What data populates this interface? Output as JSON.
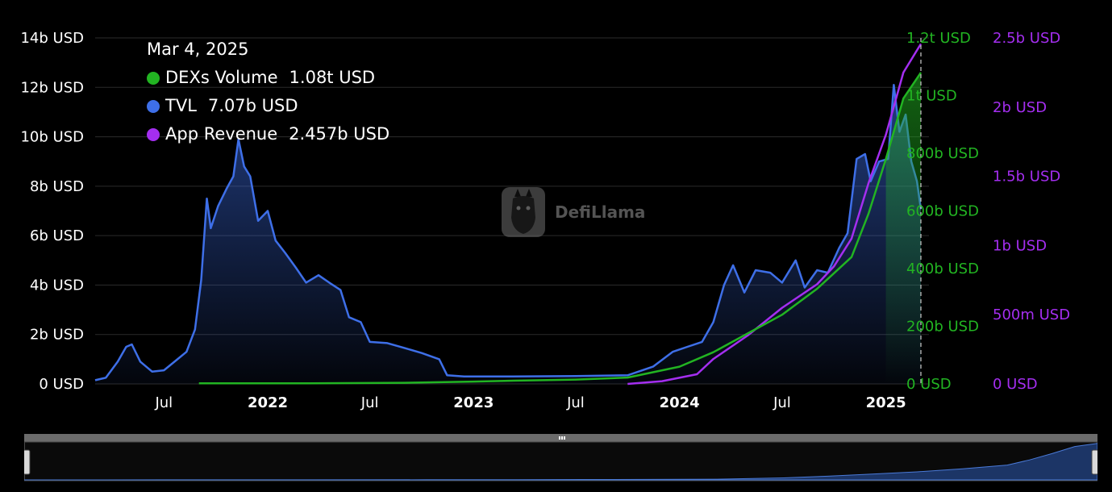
{
  "tooltip": {
    "date": "Mar 4, 2025",
    "rows": [
      {
        "label": "DEXs Volume",
        "value": "1.08t USD",
        "color": "#22b422"
      },
      {
        "label": "TVL",
        "value": "7.07b USD",
        "color": "#3e6fe8"
      },
      {
        "label": "App Revenue",
        "value": "2.457b USD",
        "color": "#a42ef0"
      }
    ]
  },
  "watermark": {
    "text": "DefiLlama"
  },
  "colors": {
    "tvl": "#3e6fe8",
    "dex": "#22b422",
    "revenue": "#a42ef0",
    "axis_left": "#ffffff",
    "axis_dex": "#22b422",
    "axis_revenue": "#a42ef0"
  },
  "chart_data": {
    "type": "line",
    "x_ticks": [
      {
        "label": "Jul",
        "date": "2021-07-01",
        "bold": false
      },
      {
        "label": "2022",
        "date": "2022-01-01",
        "bold": true
      },
      {
        "label": "Jul",
        "date": "2022-07-01",
        "bold": false
      },
      {
        "label": "2023",
        "date": "2023-01-01",
        "bold": true
      },
      {
        "label": "Jul",
        "date": "2023-07-01",
        "bold": false
      },
      {
        "label": "2024",
        "date": "2024-01-01",
        "bold": true
      },
      {
        "label": "Jul",
        "date": "2024-07-01",
        "bold": false
      },
      {
        "label": "2025",
        "date": "2025-01-01",
        "bold": true
      }
    ],
    "x_range": [
      "2021-03-01",
      "2025-03-04"
    ],
    "crosshair_date": "2025-03-04",
    "axes": {
      "tvl": {
        "ticks": [
          "0 USD",
          "2b USD",
          "4b USD",
          "6b USD",
          "8b USD",
          "10b USD",
          "12b USD",
          "14b USD"
        ],
        "tick_values": [
          0,
          2,
          4,
          6,
          8,
          10,
          12,
          14
        ],
        "unit": "b USD",
        "range": [
          0,
          14
        ]
      },
      "dex": {
        "ticks": [
          "0 USD",
          "200b USD",
          "400b USD",
          "600b USD",
          "800b USD",
          "1t USD",
          "1.2t USD"
        ],
        "tick_values": [
          0,
          200,
          400,
          600,
          800,
          1000,
          1200
        ],
        "unit": "b USD",
        "range": [
          0,
          1200
        ]
      },
      "revenue": {
        "ticks": [
          "0 USD",
          "500m USD",
          "1b USD",
          "1.5b USD",
          "2b USD",
          "2.5b USD"
        ],
        "tick_values": [
          0,
          0.5,
          1,
          1.5,
          2,
          2.5
        ],
        "unit": "b USD",
        "range": [
          0,
          2.5
        ]
      }
    },
    "series": [
      {
        "name": "TVL",
        "axis": "tvl",
        "area": true,
        "points": [
          [
            "2021-03-01",
            0.15
          ],
          [
            "2021-03-20",
            0.25
          ],
          [
            "2021-04-10",
            0.9
          ],
          [
            "2021-04-25",
            1.5
          ],
          [
            "2021-05-05",
            1.6
          ],
          [
            "2021-05-20",
            0.9
          ],
          [
            "2021-06-10",
            0.5
          ],
          [
            "2021-07-01",
            0.55
          ],
          [
            "2021-07-25",
            1.0
          ],
          [
            "2021-08-10",
            1.3
          ],
          [
            "2021-08-25",
            2.2
          ],
          [
            "2021-09-05",
            4.2
          ],
          [
            "2021-09-15",
            7.5
          ],
          [
            "2021-09-22",
            6.3
          ],
          [
            "2021-10-05",
            7.2
          ],
          [
            "2021-10-20",
            7.9
          ],
          [
            "2021-11-01",
            8.4
          ],
          [
            "2021-11-10",
            9.9
          ],
          [
            "2021-11-20",
            8.8
          ],
          [
            "2021-12-01",
            8.4
          ],
          [
            "2021-12-15",
            6.6
          ],
          [
            "2022-01-01",
            7.0
          ],
          [
            "2022-01-15",
            5.8
          ],
          [
            "2022-02-01",
            5.3
          ],
          [
            "2022-02-20",
            4.7
          ],
          [
            "2022-03-10",
            4.1
          ],
          [
            "2022-04-01",
            4.4
          ],
          [
            "2022-04-20",
            4.1
          ],
          [
            "2022-05-10",
            3.8
          ],
          [
            "2022-05-25",
            2.7
          ],
          [
            "2022-06-15",
            2.5
          ],
          [
            "2022-07-01",
            1.7
          ],
          [
            "2022-08-01",
            1.65
          ],
          [
            "2022-09-01",
            1.45
          ],
          [
            "2022-10-01",
            1.25
          ],
          [
            "2022-11-01",
            1.0
          ],
          [
            "2022-11-15",
            0.35
          ],
          [
            "2022-12-15",
            0.3
          ],
          [
            "2023-03-01",
            0.3
          ],
          [
            "2023-07-01",
            0.32
          ],
          [
            "2023-10-01",
            0.35
          ],
          [
            "2023-11-15",
            0.7
          ],
          [
            "2023-12-20",
            1.3
          ],
          [
            "2024-01-15",
            1.5
          ],
          [
            "2024-02-10",
            1.7
          ],
          [
            "2024-03-01",
            2.5
          ],
          [
            "2024-03-20",
            4.0
          ],
          [
            "2024-04-05",
            4.8
          ],
          [
            "2024-04-25",
            3.7
          ],
          [
            "2024-05-15",
            4.6
          ],
          [
            "2024-06-10",
            4.5
          ],
          [
            "2024-07-01",
            4.1
          ],
          [
            "2024-07-25",
            5.0
          ],
          [
            "2024-08-10",
            3.9
          ],
          [
            "2024-09-01",
            4.6
          ],
          [
            "2024-09-20",
            4.5
          ],
          [
            "2024-10-10",
            5.5
          ],
          [
            "2024-10-25",
            6.1
          ],
          [
            "2024-11-10",
            9.1
          ],
          [
            "2024-11-25",
            9.3
          ],
          [
            "2024-12-05",
            8.2
          ],
          [
            "2024-12-20",
            9.0
          ],
          [
            "2025-01-05",
            9.1
          ],
          [
            "2025-01-15",
            12.1
          ],
          [
            "2025-01-25",
            10.2
          ],
          [
            "2025-02-05",
            10.9
          ],
          [
            "2025-02-15",
            9.0
          ],
          [
            "2025-02-25",
            8.2
          ],
          [
            "2025-03-04",
            7.07
          ]
        ]
      },
      {
        "name": "DEXs Volume",
        "axis": "dex",
        "area": false,
        "points": [
          [
            "2021-09-01",
            2
          ],
          [
            "2022-03-01",
            2
          ],
          [
            "2022-09-01",
            4
          ],
          [
            "2023-01-01",
            8
          ],
          [
            "2023-04-01",
            12
          ],
          [
            "2023-07-01",
            15
          ],
          [
            "2023-10-01",
            22
          ],
          [
            "2024-01-01",
            60
          ],
          [
            "2024-03-01",
            110
          ],
          [
            "2024-05-01",
            175
          ],
          [
            "2024-07-01",
            240
          ],
          [
            "2024-09-01",
            330
          ],
          [
            "2024-11-01",
            440
          ],
          [
            "2024-12-01",
            590
          ],
          [
            "2025-01-01",
            780
          ],
          [
            "2025-02-01",
            990
          ],
          [
            "2025-03-04",
            1080
          ]
        ]
      },
      {
        "name": "App Revenue",
        "axis": "revenue",
        "area": false,
        "points": [
          [
            "2023-10-01",
            0.0
          ],
          [
            "2023-12-01",
            0.02
          ],
          [
            "2024-02-01",
            0.07
          ],
          [
            "2024-03-01",
            0.18
          ],
          [
            "2024-05-01",
            0.35
          ],
          [
            "2024-07-01",
            0.55
          ],
          [
            "2024-09-01",
            0.72
          ],
          [
            "2024-10-01",
            0.85
          ],
          [
            "2024-11-01",
            1.05
          ],
          [
            "2024-12-01",
            1.45
          ],
          [
            "2025-01-01",
            1.8
          ],
          [
            "2025-02-01",
            2.25
          ],
          [
            "2025-03-04",
            2.457
          ]
        ]
      }
    ]
  }
}
